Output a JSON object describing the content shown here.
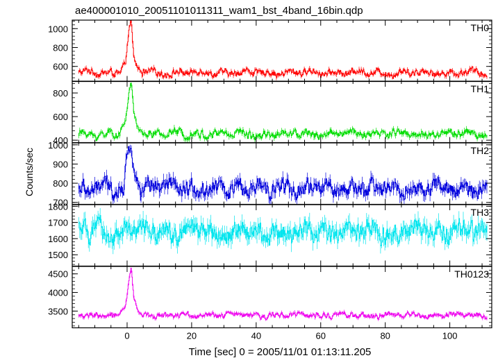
{
  "chart_data": {
    "type": "line",
    "title": "ae400001010_20051101011311_wam1_bst_4band_16bin.qdp",
    "xlabel": "Time [sec] 0 = 2005/11/01 01:13:11.205",
    "ylabel": "Counts/sec",
    "xlim": [
      -17,
      113
    ],
    "x_ticks": [
      0,
      20,
      40,
      60,
      80,
      100
    ],
    "x_tick_labels": [
      "0",
      "20",
      "40",
      "60",
      "80",
      "100"
    ],
    "x_start": -15,
    "x_end": 111.5,
    "panels": [
      {
        "name": "TH0",
        "color": "#ff0000",
        "ylim": [
          440,
          1090
        ],
        "y_ticks": [
          600,
          800,
          1000
        ],
        "y_tick_labels": [
          "600",
          "800",
          "1000"
        ],
        "baseline": 535,
        "noise": 28,
        "error": 22,
        "peak": [
          [
            -2,
            560
          ],
          [
            -0.5,
            650
          ],
          [
            0.5,
            980
          ],
          [
            1.2,
            1080
          ],
          [
            2,
            700
          ],
          [
            3,
            600
          ],
          [
            4.5,
            545
          ]
        ]
      },
      {
        "name": "TH1",
        "color": "#00dd00",
        "ylim": [
          380,
          900
        ],
        "y_ticks": [
          400,
          600,
          800
        ],
        "y_tick_labels": [
          "400",
          "600",
          "800"
        ],
        "baseline": 455,
        "noise": 25,
        "error": 20,
        "peak": [
          [
            -2,
            500
          ],
          [
            -0.5,
            560
          ],
          [
            0.5,
            800
          ],
          [
            1.2,
            900
          ],
          [
            2,
            650
          ],
          [
            3,
            520
          ],
          [
            4.5,
            465
          ]
        ]
      },
      {
        "name": "TH2",
        "color": "#0000dd",
        "ylim": [
          690,
          1010
        ],
        "y_ticks": [
          700,
          800,
          900,
          1000
        ],
        "y_tick_labels": [
          "700",
          "800",
          "900",
          "1000"
        ],
        "baseline": 772,
        "noise": 32,
        "error": 28,
        "peak": [
          [
            -1,
            800
          ],
          [
            0.3,
            1000
          ],
          [
            1.2,
            960
          ],
          [
            2.5,
            850
          ],
          [
            4,
            790
          ]
        ]
      },
      {
        "name": "TH3",
        "color": "#00e5ee",
        "ylim": [
          1430,
          1810
        ],
        "y_ticks": [
          1500,
          1600,
          1700,
          1800
        ],
        "y_tick_labels": [
          "1500",
          "1600",
          "1700",
          "1800"
        ],
        "baseline": 1640,
        "noise": 45,
        "error": 45,
        "peak": []
      },
      {
        "name": "TH0123",
        "color": "#ee00ee",
        "ylim": [
          3050,
          4700
        ],
        "y_ticks": [
          3500,
          4000,
          4500
        ],
        "y_tick_labels": [
          "3500",
          "4000",
          "4500"
        ],
        "baseline": 3390,
        "noise": 55,
        "error": 45,
        "peak": [
          [
            -2,
            3460
          ],
          [
            -0.5,
            3650
          ],
          [
            0.5,
            4300
          ],
          [
            1.2,
            4650
          ],
          [
            2,
            3900
          ],
          [
            3,
            3550
          ],
          [
            4.5,
            3420
          ]
        ]
      }
    ],
    "grid": false,
    "legend": "panel labels top-right"
  }
}
